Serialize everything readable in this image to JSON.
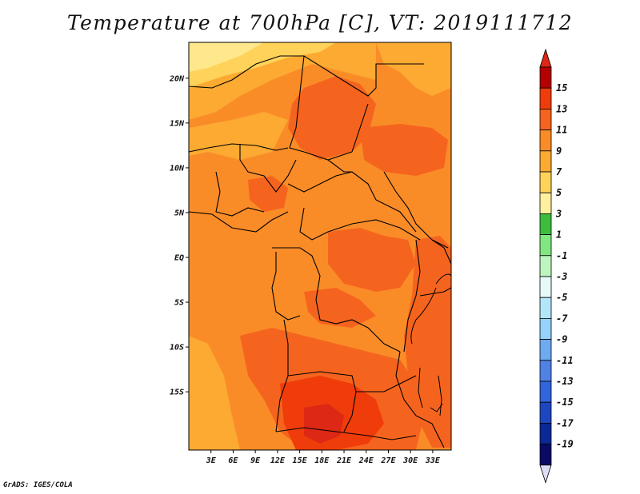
{
  "title": "Temperature at 700hPa [C], VT: 2019111712",
  "credit": "GrADS: IGES/COLA",
  "map": {
    "lat_range": [
      -21.5,
      24
    ],
    "lon_range": [
      0,
      35.5
    ],
    "y_ticks": [
      {
        "label": "20N",
        "value": 20
      },
      {
        "label": "15N",
        "value": 15
      },
      {
        "label": "10N",
        "value": 10
      },
      {
        "label": "5N",
        "value": 5
      },
      {
        "label": "EQ",
        "value": 0
      },
      {
        "label": "5S",
        "value": -5
      },
      {
        "label": "10S",
        "value": -10
      },
      {
        "label": "15S",
        "value": -15
      }
    ],
    "x_ticks": [
      {
        "label": "3E",
        "value": 3
      },
      {
        "label": "6E",
        "value": 6
      },
      {
        "label": "9E",
        "value": 9
      },
      {
        "label": "12E",
        "value": 12
      },
      {
        "label": "15E",
        "value": 15
      },
      {
        "label": "18E",
        "value": 18
      },
      {
        "label": "21E",
        "value": 21
      },
      {
        "label": "24E",
        "value": 24
      },
      {
        "label": "27E",
        "value": 27
      },
      {
        "label": "30E",
        "value": 30
      },
      {
        "label": "33E",
        "value": 33
      }
    ]
  },
  "colorbar": {
    "bins": [
      {
        "color": "#b40000",
        "label": "15"
      },
      {
        "color": "#f03c0a",
        "label": "13"
      },
      {
        "color": "#f5641e",
        "label": "11"
      },
      {
        "color": "#fa8c28",
        "label": "9"
      },
      {
        "color": "#fcaa32",
        "label": "7"
      },
      {
        "color": "#ffd25a",
        "label": "5"
      },
      {
        "color": "#fff0a0",
        "label": "3"
      },
      {
        "color": "#3cbe3c",
        "label": "1"
      },
      {
        "color": "#82e682",
        "label": "-1"
      },
      {
        "color": "#bef5be",
        "label": "-3"
      },
      {
        "color": "#e6fafa",
        "label": "-5"
      },
      {
        "color": "#b4e6fa",
        "label": "-7"
      },
      {
        "color": "#96d2fa",
        "label": "-9"
      },
      {
        "color": "#6eaaf0",
        "label": "-11"
      },
      {
        "color": "#5082e6",
        "label": "-13"
      },
      {
        "color": "#3264dc",
        "label": "-15"
      },
      {
        "color": "#1e46be",
        "label": "-17"
      },
      {
        "color": "#0a2896",
        "label": "-19"
      },
      {
        "color": "#0a0a64",
        "label": ""
      }
    ],
    "top_triangle_color": "#dc2814",
    "bottom_triangle_color": "#dcdcf5"
  }
}
